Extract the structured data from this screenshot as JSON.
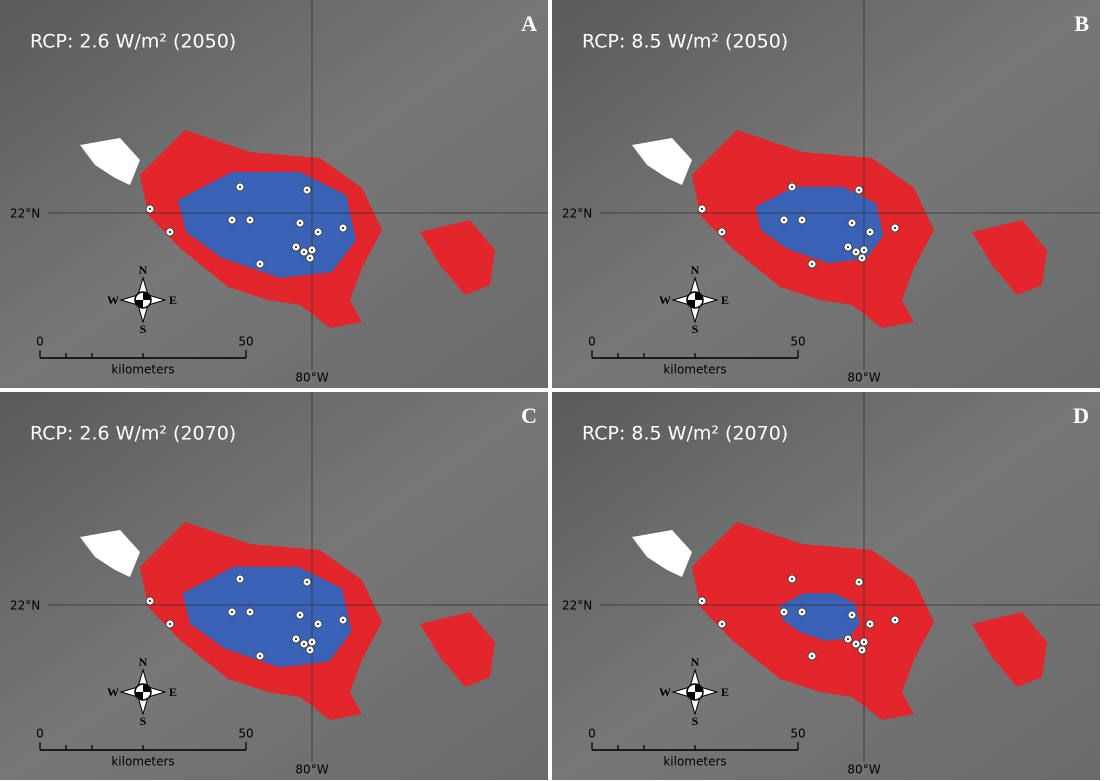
{
  "panels": [
    {
      "letter": "A",
      "title": "RCP: 2.6 W/m² (2050)"
    },
    {
      "letter": "B",
      "title": "RCP: 8.5 W/m² (2050)"
    },
    {
      "letter": "C",
      "title": "RCP: 2.6 W/m² (2070)"
    },
    {
      "letter": "D",
      "title": "RCP: 8.5 W/m² (2070)"
    }
  ],
  "latitude_label": "22°N",
  "longitude_label": "80°W",
  "compass": {
    "n": "N",
    "s": "S",
    "e": "E",
    "w": "W"
  },
  "scale_bar": {
    "start": "0",
    "end": "50",
    "unit": "kilometers"
  }
}
